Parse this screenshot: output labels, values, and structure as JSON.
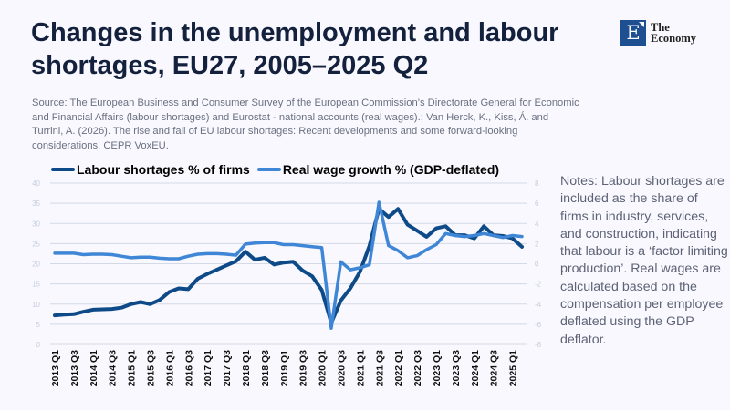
{
  "header": {
    "title": "Changes in the unemployment and labour shortages, EU27, 2005–2025 Q2",
    "source": "Source: The European Business and Consumer Survey of the European Commission’s Directorate General for Economic and Financial Affairs (labour shortages) and Eurostat - national accounts (real wages).; Van Herck, K., Kiss, Á. and Turrini, A. (2026). The rise and fall of EU labour shortages: Recent developments and some forward-looking considerations. CEPR VoxEU."
  },
  "logo": {
    "letter": "E",
    "name_line1": "The",
    "name_line2": "Economy"
  },
  "notes": "Notes: Labour shortages are included as the share of firms in industry, services, and construction, indicating that labour is a ‘factor limiting production’. Real wages are calculated based on the compensation per employee deflated using the GDP deflator.",
  "chart_data": {
    "type": "line",
    "title": "Changes in the unemployment and labour shortages, EU27, 2005–2025 Q2",
    "x": [
      "2013 Q1",
      "2013 Q2",
      "2013 Q3",
      "2013 Q4",
      "2014 Q1",
      "2014 Q2",
      "2014 Q3",
      "2014 Q4",
      "2015 Q1",
      "2015 Q2",
      "2015 Q3",
      "2015 Q4",
      "2016 Q1",
      "2016 Q2",
      "2016 Q3",
      "2016 Q4",
      "2017 Q1",
      "2017 Q2",
      "2017 Q3",
      "2017 Q4",
      "2018 Q1",
      "2018 Q2",
      "2018 Q3",
      "2018 Q4",
      "2019 Q1",
      "2019 Q2",
      "2019 Q3",
      "2019 Q4",
      "2020 Q1",
      "2020 Q2",
      "2020 Q3",
      "2020 Q4",
      "2021 Q1",
      "2021 Q2",
      "2021 Q3",
      "2021 Q4",
      "2022 Q1",
      "2022 Q2",
      "2022 Q3",
      "2022 Q4",
      "2023 Q1",
      "2023 Q2",
      "2023 Q3",
      "2023 Q4",
      "2024 Q1",
      "2024 Q2",
      "2024 Q3",
      "2024 Q4",
      "2025 Q1",
      "2025 Q2"
    ],
    "xticks_shown_every": 2,
    "series": [
      {
        "name": "Labour shortages % of firms",
        "axis": "left",
        "color": "#0d4a87",
        "values": [
          7.2,
          7.4,
          7.5,
          8.1,
          8.6,
          8.7,
          8.8,
          9.1,
          10.0,
          10.5,
          10.0,
          11.0,
          13.0,
          13.9,
          13.7,
          16.3,
          17.5,
          18.5,
          19.6,
          20.6,
          23.0,
          21.0,
          21.5,
          19.8,
          20.3,
          20.5,
          18.3,
          16.9,
          13.5,
          5.3,
          10.9,
          13.9,
          18.0,
          24.4,
          33.6,
          31.6,
          33.6,
          29.7,
          28.2,
          26.7,
          28.8,
          29.3,
          27.1,
          27.1,
          26.3,
          29.3,
          27.1,
          26.9,
          26.3,
          24.2
        ]
      },
      {
        "name": "Real wage growth % (GDP-deflated)",
        "axis": "right",
        "color": "#3f86d6",
        "values": [
          1.05,
          1.05,
          1.05,
          0.9,
          0.95,
          0.95,
          0.9,
          0.75,
          0.6,
          0.65,
          0.65,
          0.55,
          0.5,
          0.5,
          0.75,
          0.95,
          1.0,
          1.0,
          0.95,
          0.85,
          1.95,
          2.05,
          2.1,
          2.1,
          1.9,
          1.9,
          1.8,
          1.7,
          1.6,
          -6.4,
          0.2,
          -0.6,
          -0.4,
          -0.1,
          6.1,
          1.8,
          1.3,
          0.6,
          0.8,
          1.4,
          1.9,
          3.0,
          2.8,
          2.7,
          2.8,
          3.0,
          2.8,
          2.6,
          2.8,
          2.7
        ]
      }
    ],
    "left_axis": {
      "min": 0,
      "max": 40,
      "step": 5
    },
    "right_axis": {
      "min": -8,
      "max": 8,
      "step": 2
    },
    "grid": true,
    "legend": "top-left"
  }
}
